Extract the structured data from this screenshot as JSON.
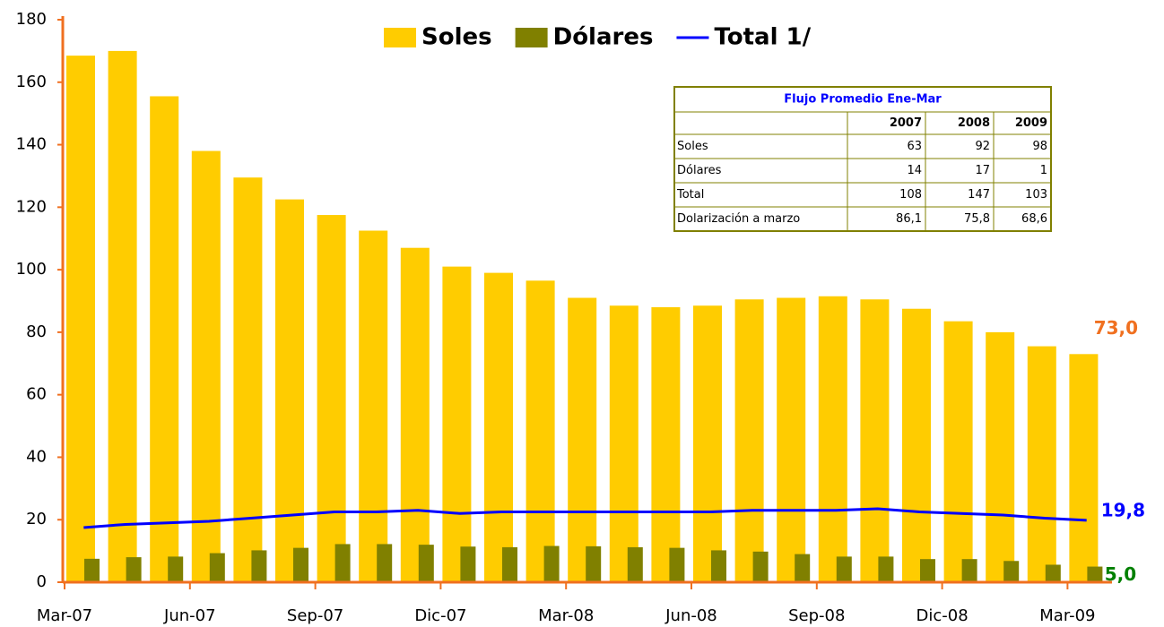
{
  "chart_data": {
    "type": "bar",
    "categories": [
      "Mar-07",
      null,
      null,
      "Jun-07",
      null,
      null,
      "Sep-07",
      null,
      null,
      "Dic-07",
      null,
      null,
      "Mar-08",
      null,
      null,
      "Jun-08",
      null,
      null,
      "Sep-08",
      null,
      null,
      "Dic-08",
      null,
      null,
      "Mar-09"
    ],
    "series": [
      {
        "name": "Soles",
        "color": "#FFCC00",
        "type": "bar",
        "values": [
          168.5,
          170,
          155.5,
          138,
          129.5,
          122.5,
          117.5,
          112.5,
          107,
          101,
          99,
          96.5,
          91,
          88.5,
          88,
          88.5,
          90.5,
          91,
          91.5,
          90.5,
          87.5,
          83.5,
          80,
          75.5,
          73
        ],
        "value_labels": [
          null,
          null,
          null,
          null,
          null,
          null,
          null,
          null,
          null,
          null,
          null,
          null,
          null,
          null,
          null,
          null,
          null,
          null,
          null,
          null,
          null,
          null,
          null,
          null,
          "73,0"
        ]
      },
      {
        "name": "Dólares",
        "color": "#808000",
        "type": "bar",
        "values": [
          7.5,
          8,
          8.2,
          9.3,
          10.2,
          11,
          12.2,
          12.2,
          12,
          11.4,
          11.2,
          11.6,
          11.5,
          11.2,
          11,
          10.2,
          9.8,
          9,
          8.2,
          8.2,
          7.4,
          7.4,
          6.8,
          5.6,
          5
        ],
        "value_labels": [
          null,
          null,
          null,
          null,
          null,
          null,
          null,
          null,
          null,
          null,
          null,
          null,
          null,
          null,
          null,
          null,
          null,
          null,
          null,
          null,
          null,
          null,
          null,
          null,
          "5,0"
        ]
      },
      {
        "name": "Total 1/",
        "color": "#0000FF",
        "type": "line",
        "values": [
          17.5,
          18.5,
          19,
          19.5,
          20.5,
          21.5,
          22.5,
          22.5,
          23,
          22,
          22.5,
          22.5,
          22.5,
          22.5,
          22.5,
          22.5,
          23,
          23,
          23,
          23.5,
          22.5,
          22,
          21.5,
          20.5,
          19.8
        ],
        "value_labels": [
          null,
          null,
          null,
          null,
          null,
          null,
          null,
          null,
          null,
          null,
          null,
          null,
          null,
          null,
          null,
          null,
          null,
          null,
          null,
          null,
          null,
          null,
          null,
          null,
          "19,8"
        ]
      }
    ],
    "ylim": [
      0,
      180
    ],
    "yticks": [
      0,
      20,
      40,
      60,
      80,
      100,
      120,
      140,
      160,
      180
    ],
    "legend": "top",
    "table": {
      "title": "Flujo Promedio Ene-Mar",
      "columns": [
        "2007",
        "2008",
        "2009"
      ],
      "rows": [
        [
          "Soles",
          63,
          92,
          98
        ],
        [
          "Dólares",
          14,
          17,
          1
        ],
        [
          "Total",
          108,
          147,
          103
        ],
        [
          "Dolarización a marzo",
          "86,1",
          "75,8",
          "68,6"
        ]
      ]
    }
  }
}
